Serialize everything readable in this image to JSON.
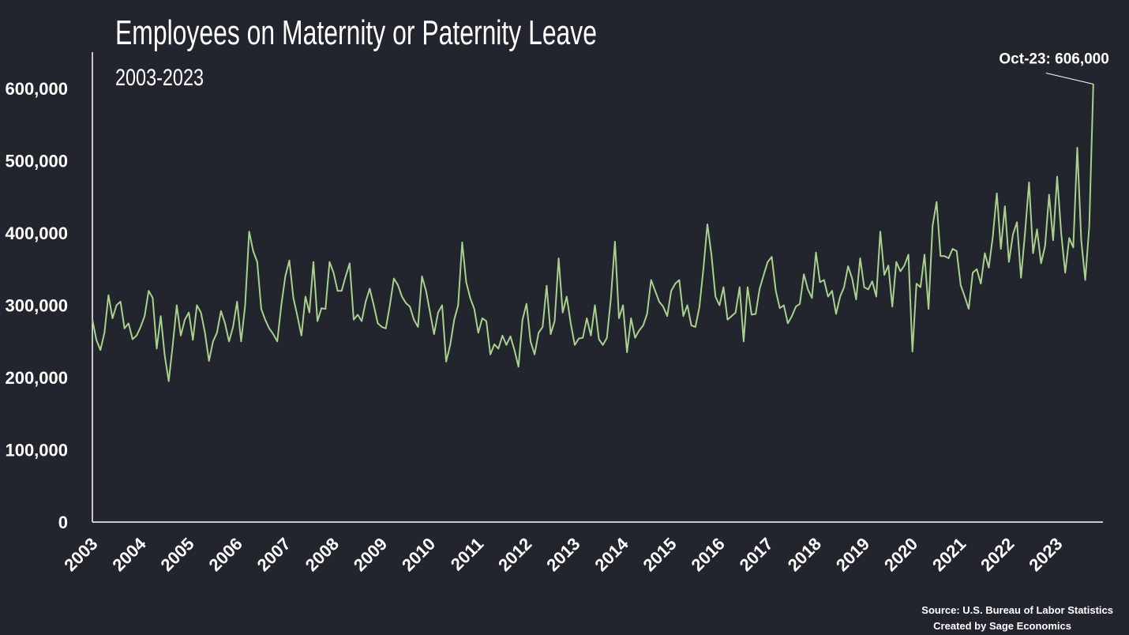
{
  "chart_data": {
    "type": "line",
    "title": "Employees on Maternity or Paternity Leave",
    "subtitle": "2003-2023",
    "xlabel": "",
    "ylabel": "",
    "ylim": [
      0,
      650000
    ],
    "yticks": [
      0,
      100000,
      200000,
      300000,
      400000,
      500000,
      600000
    ],
    "ytick_labels": [
      "0",
      "100,000",
      "200,000",
      "300,000",
      "400,000",
      "500,000",
      "600,000"
    ],
    "xlim": [
      2003,
      2024
    ],
    "xtick_labels": [
      "2003",
      "2004",
      "2005",
      "2006",
      "2007",
      "2008",
      "2009",
      "2010",
      "2011",
      "2012",
      "2013",
      "2014",
      "2015",
      "2016",
      "2017",
      "2018",
      "2019",
      "2020",
      "2021",
      "2022",
      "2023"
    ],
    "grid": false,
    "line_color": "#a9d18e",
    "series": [
      {
        "start": "2003-01",
        "end": "2023-10",
        "frequency": "monthly",
        "values": [
          280000,
          252000,
          238000,
          262000,
          314000,
          282000,
          300000,
          305000,
          268000,
          275000,
          253000,
          258000,
          270000,
          285000,
          320000,
          310000,
          240000,
          285000,
          230000,
          195000,
          245000,
          300000,
          258000,
          280000,
          290000,
          252000,
          300000,
          290000,
          262000,
          223000,
          250000,
          262000,
          292000,
          275000,
          250000,
          270000,
          305000,
          250000,
          300000,
          402000,
          375000,
          360000,
          295000,
          280000,
          268000,
          260000,
          250000,
          300000,
          340000,
          362000,
          310000,
          285000,
          258000,
          312000,
          290000,
          360000,
          278000,
          296000,
          295000,
          360000,
          345000,
          320000,
          320000,
          340000,
          358000,
          280000,
          287000,
          278000,
          305000,
          323000,
          300000,
          275000,
          270000,
          268000,
          300000,
          337000,
          328000,
          312000,
          303000,
          298000,
          280000,
          270000,
          340000,
          320000,
          290000,
          260000,
          290000,
          300000,
          222000,
          245000,
          280000,
          300000,
          387000,
          332000,
          310000,
          295000,
          262000,
          282000,
          278000,
          232000,
          246000,
          240000,
          258000,
          245000,
          257000,
          238000,
          215000,
          280000,
          302000,
          250000,
          232000,
          262000,
          270000,
          327000,
          260000,
          278000,
          365000,
          290000,
          312000,
          275000,
          245000,
          254000,
          255000,
          282000,
          258000,
          300000,
          253000,
          245000,
          255000,
          310000,
          388000,
          282000,
          300000,
          235000,
          282000,
          255000,
          265000,
          272000,
          288000,
          335000,
          320000,
          305000,
          298000,
          285000,
          320000,
          330000,
          335000,
          285000,
          300000,
          272000,
          270000,
          297000,
          350000,
          412000,
          370000,
          312000,
          300000,
          325000,
          280000,
          285000,
          290000,
          325000,
          250000,
          325000,
          287000,
          288000,
          323000,
          342000,
          360000,
          367000,
          320000,
          296000,
          300000,
          275000,
          285000,
          298000,
          302000,
          343000,
          322000,
          310000,
          373000,
          332000,
          335000,
          312000,
          320000,
          288000,
          312000,
          325000,
          354000,
          337000,
          308000,
          365000,
          325000,
          322000,
          333000,
          312000,
          402000,
          342000,
          355000,
          298000,
          360000,
          347000,
          355000,
          370000,
          236000,
          330000,
          325000,
          370000,
          295000,
          410000,
          443000,
          368000,
          368000,
          365000,
          378000,
          375000,
          328000,
          312000,
          295000,
          345000,
          350000,
          330000,
          372000,
          352000,
          395000,
          455000,
          378000,
          437000,
          360000,
          398000,
          415000,
          338000,
          400000,
          470000,
          372000,
          405000,
          358000,
          382000,
          453000,
          390000,
          478000,
          400000,
          345000,
          393000,
          380000,
          518000,
          390000,
          335000,
          410000,
          606000
        ]
      }
    ],
    "annotation": {
      "label": "Oct-23: 606,000",
      "x": "2023-10",
      "y": 606000
    }
  },
  "footer": {
    "source": "Source:  U.S. Bureau of Labor Statistics",
    "credit": "Created by Sage Economics"
  }
}
